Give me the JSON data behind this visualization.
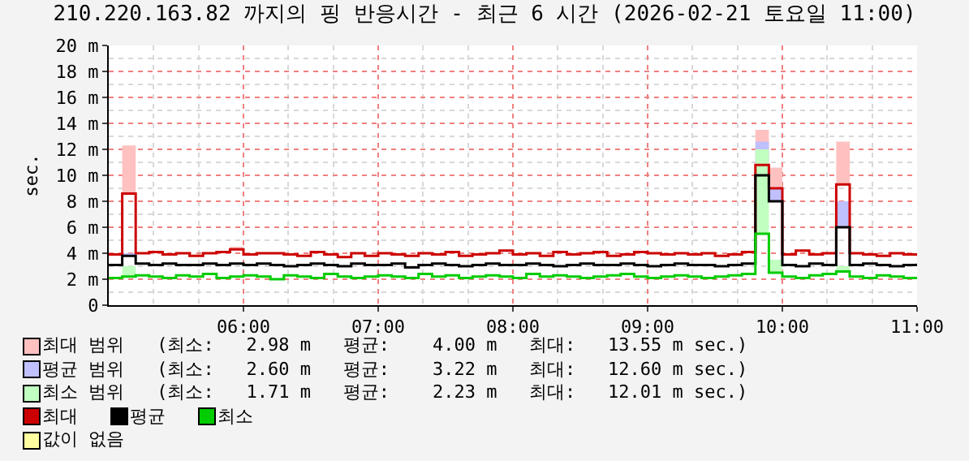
{
  "chart_data": {
    "type": "step",
    "title": "210.220.163.82 까지의 핑 반응시간 - 최근 6 시간 (2026-02-21 토요일 11:00)",
    "ylabel": "sec.",
    "x": [
      5.0,
      5.1,
      5.2,
      5.3,
      5.4,
      5.5,
      5.6,
      5.7,
      5.8,
      5.9,
      6.0,
      6.1,
      6.2,
      6.3,
      6.4,
      6.5,
      6.6,
      6.7,
      6.8,
      6.9,
      7.0,
      7.1,
      7.2,
      7.3,
      7.4,
      7.5,
      7.6,
      7.7,
      7.8,
      7.9,
      8.0,
      8.1,
      8.2,
      8.3,
      8.4,
      8.5,
      8.6,
      8.7,
      8.8,
      8.9,
      9.0,
      9.1,
      9.2,
      9.3,
      9.4,
      9.5,
      9.6,
      9.7,
      9.8,
      9.9,
      10.0,
      10.1,
      10.2,
      10.3,
      10.4,
      10.5,
      10.6,
      10.7,
      10.8,
      10.9,
      11.0
    ],
    "xlim": [
      5,
      11
    ],
    "xticks": [
      {
        "value": 6,
        "label": "06:00"
      },
      {
        "value": 7,
        "label": "07:00"
      },
      {
        "value": 8,
        "label": "08:00"
      },
      {
        "value": 9,
        "label": "09:00"
      },
      {
        "value": 10,
        "label": "10:00"
      },
      {
        "value": 11,
        "label": "11:00"
      }
    ],
    "ylim": [
      0,
      20
    ],
    "yticks": [
      0,
      {
        "value": 2,
        "label": "2 m"
      },
      {
        "value": 4,
        "label": "4 m"
      },
      {
        "value": 6,
        "label": "6 m"
      },
      {
        "value": 8,
        "label": "8 m"
      },
      {
        "value": 10,
        "label": "10 m"
      },
      {
        "value": 12,
        "label": "12 m"
      },
      {
        "value": 14,
        "label": "14 m"
      },
      {
        "value": 16,
        "label": "16 m"
      },
      {
        "value": 18,
        "label": "18 m"
      },
      {
        "value": 20,
        "label": "20 m"
      }
    ],
    "grid": true,
    "legend": "bottom",
    "annotations": [
      "(최소:   2.98 m   평균:    4.00 m   최대:   13.55 m sec.)",
      "(최소:   2.60 m   평균:    3.22 m   최대:   12.60 m sec.)",
      "(최소:   1.71 m   평균:    2.23 m   최대:   12.01 m sec.)"
    ],
    "series": [
      {
        "name": "최대 범위",
        "type": "area",
        "color": "#ffc0c0",
        "values": [
          3.9,
          12.3,
          4.0,
          4.1,
          3.9,
          4.0,
          3.8,
          4.0,
          4.1,
          4.5,
          3.9,
          4.0,
          4.0,
          3.9,
          3.8,
          4.1,
          3.9,
          3.7,
          4.0,
          3.8,
          4.0,
          3.9,
          3.8,
          4.0,
          3.9,
          4.1,
          3.8,
          3.9,
          4.0,
          4.2,
          3.9,
          4.0,
          3.8,
          4.1,
          3.9,
          4.0,
          4.1,
          3.8,
          3.9,
          4.1,
          4.0,
          3.9,
          4.0,
          3.9,
          4.0,
          3.8,
          3.9,
          4.1,
          13.5,
          10.6,
          3.9,
          4.2,
          3.9,
          4.0,
          12.6,
          4.0,
          3.9,
          3.8,
          4.0,
          3.9,
          3.8
        ]
      },
      {
        "name": "평균 범위",
        "type": "area",
        "color": "#c0c0ff",
        "values": [
          3.1,
          4.0,
          3.2,
          3.1,
          3.2,
          3.1,
          3.1,
          3.2,
          3.1,
          3.2,
          3.1,
          3.2,
          3.1,
          3.0,
          3.1,
          3.2,
          3.1,
          3.0,
          3.2,
          3.1,
          3.1,
          3.2,
          2.9,
          3.1,
          3.2,
          3.1,
          3.0,
          3.1,
          3.2,
          3.1,
          3.1,
          3.2,
          3.1,
          3.0,
          3.1,
          3.2,
          3.1,
          3.1,
          3.2,
          3.1,
          3.0,
          3.1,
          3.2,
          3.1,
          3.1,
          3.0,
          3.1,
          3.2,
          12.6,
          9.0,
          3.1,
          3.0,
          3.2,
          3.1,
          8.0,
          3.1,
          3.2,
          3.1,
          3.0,
          3.1,
          3.2
        ]
      },
      {
        "name": "최소 범위",
        "type": "area",
        "color": "#c0ffc0",
        "values": [
          2.1,
          3.0,
          2.3,
          2.2,
          2.1,
          2.3,
          2.2,
          2.4,
          2.1,
          2.2,
          2.3,
          2.2,
          2.0,
          2.3,
          2.2,
          2.1,
          2.4,
          2.2,
          2.1,
          2.2,
          2.3,
          2.2,
          2.1,
          2.4,
          2.2,
          2.3,
          2.1,
          2.2,
          2.3,
          2.2,
          2.1,
          2.4,
          2.2,
          2.3,
          2.2,
          2.1,
          2.2,
          2.3,
          2.4,
          2.2,
          2.1,
          2.2,
          2.3,
          2.2,
          2.1,
          2.2,
          2.3,
          2.4,
          12.0,
          3.5,
          2.2,
          2.1,
          2.3,
          2.4,
          3.0,
          2.2,
          2.1,
          2.3,
          2.2,
          2.1,
          2.0
        ]
      },
      {
        "name": "최대",
        "color": "#cc0000",
        "values": [
          3.9,
          8.6,
          4.0,
          4.1,
          3.9,
          4.0,
          3.8,
          4.0,
          4.1,
          4.3,
          3.9,
          4.0,
          4.0,
          3.9,
          3.8,
          4.1,
          3.9,
          3.7,
          4.0,
          3.8,
          4.0,
          3.9,
          3.8,
          4.0,
          3.9,
          4.1,
          3.8,
          3.9,
          4.0,
          4.2,
          3.9,
          4.0,
          3.8,
          4.1,
          3.9,
          4.0,
          4.1,
          3.8,
          3.9,
          4.1,
          4.0,
          3.9,
          4.0,
          3.9,
          4.0,
          3.8,
          3.9,
          4.1,
          10.8,
          9.0,
          3.9,
          4.2,
          3.9,
          4.0,
          9.3,
          4.0,
          3.9,
          3.8,
          4.0,
          3.9,
          3.8
        ]
      },
      {
        "name": "평균",
        "color": "#000000",
        "values": [
          3.1,
          3.8,
          3.2,
          3.1,
          3.2,
          3.1,
          3.1,
          3.2,
          3.1,
          3.2,
          3.1,
          3.2,
          3.1,
          3.0,
          3.1,
          3.2,
          3.1,
          3.0,
          3.2,
          3.1,
          3.1,
          3.2,
          2.9,
          3.1,
          3.2,
          3.1,
          3.0,
          3.1,
          3.2,
          3.1,
          3.1,
          3.2,
          3.1,
          3.0,
          3.1,
          3.2,
          3.1,
          3.1,
          3.2,
          3.1,
          3.0,
          3.1,
          3.2,
          3.1,
          3.1,
          3.0,
          3.1,
          3.2,
          10.0,
          8.0,
          3.1,
          3.0,
          3.2,
          3.1,
          6.0,
          3.1,
          3.2,
          3.1,
          3.0,
          3.1,
          3.2
        ]
      },
      {
        "name": "최소",
        "color": "#00cc00",
        "values": [
          2.1,
          2.2,
          2.3,
          2.2,
          2.1,
          2.3,
          2.2,
          2.4,
          2.1,
          2.2,
          2.3,
          2.2,
          2.0,
          2.3,
          2.2,
          2.1,
          2.4,
          2.2,
          2.1,
          2.2,
          2.3,
          2.2,
          2.1,
          2.4,
          2.2,
          2.3,
          2.1,
          2.2,
          2.3,
          2.2,
          2.1,
          2.4,
          2.2,
          2.3,
          2.2,
          2.1,
          2.2,
          2.3,
          2.4,
          2.2,
          2.1,
          2.2,
          2.3,
          2.2,
          2.1,
          2.2,
          2.3,
          2.4,
          5.5,
          2.5,
          2.2,
          2.1,
          2.3,
          2.4,
          2.6,
          2.2,
          2.1,
          2.3,
          2.2,
          2.1,
          2.0
        ]
      },
      {
        "name": "값이 없음",
        "type": "area",
        "color": "#ffffa0",
        "values": [
          null,
          null,
          null,
          null,
          null,
          null,
          null,
          null,
          null,
          null,
          null,
          null,
          null,
          null,
          null,
          null,
          null,
          null,
          null,
          null,
          null,
          null,
          null,
          null,
          null,
          null,
          null,
          null,
          null,
          null,
          null,
          null,
          null,
          null,
          null,
          null,
          null,
          null,
          null,
          null,
          null,
          null,
          null,
          null,
          null,
          null,
          null,
          null,
          null,
          null,
          null,
          null,
          null,
          null,
          null,
          null,
          null,
          null,
          null,
          null,
          null
        ]
      }
    ]
  }
}
